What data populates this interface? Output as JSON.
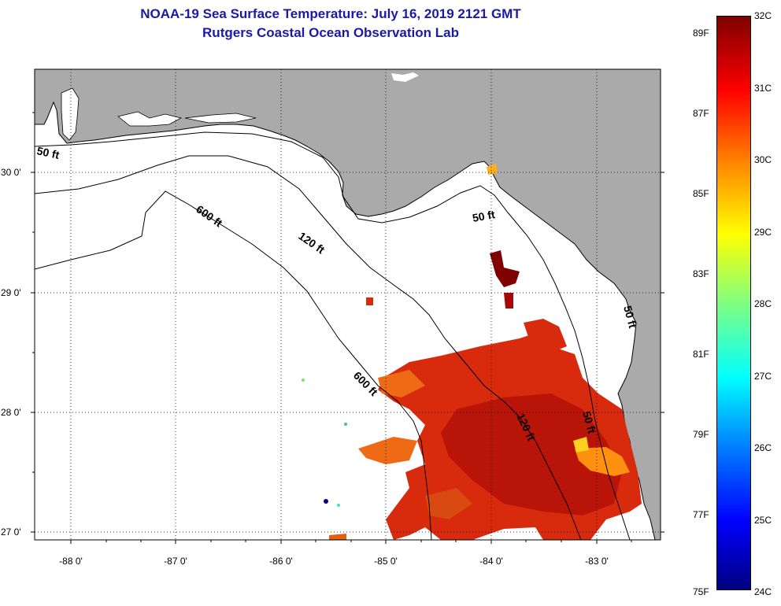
{
  "title_line1": "NOAA-19 Sea Surface Temperature:  July 16, 2019 2121 GMT",
  "title_line2": "Rutgers Coastal Ocean Observation Lab",
  "lat_labels": [
    "30 0'",
    "29 0'",
    "28 0'",
    "27 0'"
  ],
  "lon_labels": [
    "-88 0'",
    "-87 0'",
    "-86 0'",
    "-85 0'",
    "-84 0'",
    "-83 0'"
  ],
  "contours": [
    "50 ft",
    "600 ft",
    "120 ft",
    "50 ft",
    "600 ft",
    "120 ft",
    "50 ft",
    "50 ft"
  ],
  "colorbar": {
    "celsius": [
      "32C",
      "31C",
      "30C",
      "29C",
      "28C",
      "27C",
      "26C",
      "25C",
      "24C"
    ],
    "fahrenheit": [
      "89F",
      "87F",
      "85F",
      "83F",
      "81F",
      "79F",
      "77F",
      "75F"
    ],
    "range_c": [
      24,
      32
    ]
  },
  "colors": {
    "land": "#aaaaaa",
    "title": "#1a1aa6",
    "warm_sst": "#d82a0c"
  }
}
